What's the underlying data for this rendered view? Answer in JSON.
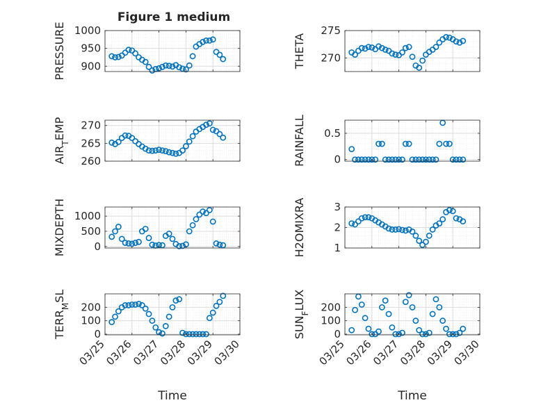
{
  "figure": {
    "title": "Figure 1 medium",
    "colors": {
      "marker": "#0072BD",
      "axes": "#262626",
      "grid": "#dcdcdc",
      "minor_grid": "#ececec",
      "background": "#ffffff"
    }
  },
  "chart_data": [
    {
      "type": "scatter",
      "ylabel": "PRESSURE",
      "xlim": [
        "03/25",
        "03/30"
      ],
      "ylim": [
        885,
        1000
      ],
      "yticks": [
        900,
        950,
        1000
      ],
      "xticks": [
        "03/25",
        "03/26",
        "03/27",
        "03/28",
        "03/29",
        "03/30"
      ],
      "xtick_labels_shown": false,
      "xlabel": "",
      "grid": true,
      "minor_grid": true,
      "x": [
        "2024-03-25T06:00",
        "2024-03-25T09:00",
        "2024-03-25T12:00",
        "2024-03-25T15:00",
        "2024-03-25T18:00",
        "2024-03-25T21:00",
        "2024-03-26T00:00",
        "2024-03-26T03:00",
        "2024-03-26T06:00",
        "2024-03-26T09:00",
        "2024-03-26T12:00",
        "2024-03-26T15:00",
        "2024-03-26T18:00",
        "2024-03-26T21:00",
        "2024-03-27T00:00",
        "2024-03-27T03:00",
        "2024-03-27T06:00",
        "2024-03-27T09:00",
        "2024-03-27T12:00",
        "2024-03-27T15:00",
        "2024-03-27T18:00",
        "2024-03-27T21:00",
        "2024-03-28T00:00",
        "2024-03-28T03:00",
        "2024-03-28T06:00",
        "2024-03-28T09:00",
        "2024-03-28T12:00",
        "2024-03-28T15:00",
        "2024-03-28T18:00",
        "2024-03-28T21:00",
        "2024-03-29T00:00",
        "2024-03-29T03:00",
        "2024-03-29T06:00",
        "2024-03-29T09:00"
      ],
      "y": [
        928,
        925,
        926,
        930,
        938,
        946,
        944,
        936,
        925,
        918,
        912,
        898,
        888,
        892,
        894,
        898,
        902,
        901,
        899,
        903,
        897,
        893,
        891,
        902,
        928,
        955,
        962,
        968,
        972,
        972,
        975,
        940,
        932,
        920
      ]
    },
    {
      "type": "scatter",
      "ylabel": "THETA",
      "xlim": [
        "03/25",
        "03/30"
      ],
      "ylim": [
        267.5,
        275
      ],
      "yticks": [
        270,
        275
      ],
      "xticks": [
        "03/25",
        "03/26",
        "03/27",
        "03/28",
        "03/29",
        "03/30"
      ],
      "xtick_labels_shown": false,
      "xlabel": "",
      "grid": true,
      "minor_grid": true,
      "x": [
        "2024-03-25T06:00",
        "2024-03-25T09:00",
        "2024-03-25T12:00",
        "2024-03-25T15:00",
        "2024-03-25T18:00",
        "2024-03-25T21:00",
        "2024-03-26T00:00",
        "2024-03-26T03:00",
        "2024-03-26T06:00",
        "2024-03-26T09:00",
        "2024-03-26T12:00",
        "2024-03-26T15:00",
        "2024-03-26T18:00",
        "2024-03-26T21:00",
        "2024-03-27T00:00",
        "2024-03-27T03:00",
        "2024-03-27T06:00",
        "2024-03-27T09:00",
        "2024-03-27T12:00",
        "2024-03-27T15:00",
        "2024-03-27T18:00",
        "2024-03-27T21:00",
        "2024-03-28T00:00",
        "2024-03-28T03:00",
        "2024-03-28T06:00",
        "2024-03-28T09:00",
        "2024-03-28T12:00",
        "2024-03-28T15:00",
        "2024-03-28T18:00",
        "2024-03-28T21:00",
        "2024-03-29T00:00",
        "2024-03-29T03:00",
        "2024-03-29T06:00",
        "2024-03-29T09:00"
      ],
      "y": [
        271.0,
        270.6,
        271.3,
        271.8,
        271.7,
        272.0,
        271.9,
        271.6,
        272.1,
        271.8,
        271.5,
        271.3,
        270.8,
        270.6,
        270.5,
        271.0,
        271.8,
        272.0,
        270.2,
        268.6,
        268.2,
        269.5,
        270.6,
        271.1,
        271.5,
        272.0,
        272.8,
        273.4,
        273.8,
        273.7,
        273.4,
        273.0,
        272.8,
        273.1
      ]
    },
    {
      "type": "scatter",
      "ylabel": "AIR_TEMP",
      "xlim": [
        "03/25",
        "03/30"
      ],
      "ylim": [
        260,
        271.5
      ],
      "yticks": [
        260,
        265,
        270
      ],
      "xticks": [
        "03/25",
        "03/26",
        "03/27",
        "03/28",
        "03/29",
        "03/30"
      ],
      "xtick_labels_shown": false,
      "xlabel": "",
      "grid": true,
      "minor_grid": true,
      "x": [
        "2024-03-25T06:00",
        "2024-03-25T09:00",
        "2024-03-25T12:00",
        "2024-03-25T15:00",
        "2024-03-25T18:00",
        "2024-03-25T21:00",
        "2024-03-26T00:00",
        "2024-03-26T03:00",
        "2024-03-26T06:00",
        "2024-03-26T09:00",
        "2024-03-26T12:00",
        "2024-03-26T15:00",
        "2024-03-26T18:00",
        "2024-03-26T21:00",
        "2024-03-27T00:00",
        "2024-03-27T03:00",
        "2024-03-27T06:00",
        "2024-03-27T09:00",
        "2024-03-27T12:00",
        "2024-03-27T15:00",
        "2024-03-27T18:00",
        "2024-03-27T21:00",
        "2024-03-28T00:00",
        "2024-03-28T03:00",
        "2024-03-28T06:00",
        "2024-03-28T09:00",
        "2024-03-28T12:00",
        "2024-03-28T15:00",
        "2024-03-28T18:00",
        "2024-03-28T21:00",
        "2024-03-29T00:00",
        "2024-03-29T03:00",
        "2024-03-29T06:00",
        "2024-03-29T09:00"
      ],
      "y": [
        265.2,
        264.8,
        265.4,
        266.5,
        267.2,
        267.1,
        266.5,
        265.6,
        264.8,
        264.1,
        263.5,
        263.0,
        262.9,
        263.0,
        263.2,
        263.0,
        262.8,
        262.5,
        262.3,
        262.1,
        262.3,
        263.0,
        264.2,
        265.5,
        267.0,
        268.3,
        269.0,
        269.6,
        270.2,
        270.6,
        268.8,
        268.4,
        267.6,
        266.6
      ]
    },
    {
      "type": "scatter",
      "ylabel": "RAINFALL",
      "xlim": [
        "03/25",
        "03/30"
      ],
      "ylim": [
        -0.03,
        0.75
      ],
      "yticks": [
        0,
        0.5
      ],
      "xticks": [
        "03/25",
        "03/26",
        "03/27",
        "03/28",
        "03/29",
        "03/30"
      ],
      "xtick_labels_shown": false,
      "xlabel": "",
      "grid": true,
      "minor_grid": true,
      "x": [
        "2024-03-25T06:00",
        "2024-03-25T09:00",
        "2024-03-25T12:00",
        "2024-03-25T15:00",
        "2024-03-25T18:00",
        "2024-03-25T21:00",
        "2024-03-26T00:00",
        "2024-03-26T03:00",
        "2024-03-26T06:00",
        "2024-03-26T09:00",
        "2024-03-26T12:00",
        "2024-03-26T15:00",
        "2024-03-26T18:00",
        "2024-03-26T21:00",
        "2024-03-27T00:00",
        "2024-03-27T03:00",
        "2024-03-27T06:00",
        "2024-03-27T09:00",
        "2024-03-27T12:00",
        "2024-03-27T15:00",
        "2024-03-27T18:00",
        "2024-03-27T21:00",
        "2024-03-28T00:00",
        "2024-03-28T03:00",
        "2024-03-28T06:00",
        "2024-03-28T09:00",
        "2024-03-28T12:00",
        "2024-03-28T15:00",
        "2024-03-28T18:00",
        "2024-03-28T21:00",
        "2024-03-29T00:00",
        "2024-03-29T03:00",
        "2024-03-29T06:00",
        "2024-03-29T09:00"
      ],
      "y": [
        0.2,
        0,
        0,
        0,
        0,
        0,
        0,
        0,
        0.3,
        0.3,
        0,
        0,
        0,
        0,
        0,
        0,
        0.3,
        0.3,
        0,
        0,
        0,
        0,
        0,
        0,
        0,
        0,
        0.3,
        0.7,
        0.3,
        0.3,
        0,
        0,
        0,
        0
      ]
    },
    {
      "type": "scatter",
      "ylabel": "MIXDEPTH",
      "xlim": [
        "03/25",
        "03/30"
      ],
      "ylim": [
        -50,
        1300
      ],
      "yticks": [
        0,
        500,
        1000
      ],
      "xticks": [
        "03/25",
        "03/26",
        "03/27",
        "03/28",
        "03/29",
        "03/30"
      ],
      "xtick_labels_shown": false,
      "xlabel": "",
      "grid": true,
      "minor_grid": true,
      "x": [
        "2024-03-25T06:00",
        "2024-03-25T09:00",
        "2024-03-25T12:00",
        "2024-03-25T15:00",
        "2024-03-25T18:00",
        "2024-03-25T21:00",
        "2024-03-26T00:00",
        "2024-03-26T03:00",
        "2024-03-26T06:00",
        "2024-03-26T09:00",
        "2024-03-26T12:00",
        "2024-03-26T15:00",
        "2024-03-26T18:00",
        "2024-03-26T21:00",
        "2024-03-27T00:00",
        "2024-03-27T03:00",
        "2024-03-27T06:00",
        "2024-03-27T09:00",
        "2024-03-27T12:00",
        "2024-03-27T15:00",
        "2024-03-27T18:00",
        "2024-03-27T21:00",
        "2024-03-28T00:00",
        "2024-03-28T03:00",
        "2024-03-28T06:00",
        "2024-03-28T09:00",
        "2024-03-28T12:00",
        "2024-03-28T15:00",
        "2024-03-28T18:00",
        "2024-03-28T21:00",
        "2024-03-29T00:00",
        "2024-03-29T03:00",
        "2024-03-29T06:00",
        "2024-03-29T09:00"
      ],
      "y": [
        320,
        500,
        650,
        250,
        120,
        100,
        90,
        120,
        150,
        500,
        580,
        280,
        60,
        30,
        50,
        40,
        350,
        420,
        250,
        80,
        10,
        20,
        70,
        500,
        700,
        900,
        1050,
        1150,
        1100,
        1200,
        820,
        100,
        60,
        40
      ]
    },
    {
      "type": "scatter",
      "ylabel": "H2OMIXRA",
      "xlim": [
        "03/25",
        "03/30"
      ],
      "ylim": [
        1,
        3
      ],
      "yticks": [
        1,
        2,
        3
      ],
      "xticks": [
        "03/25",
        "03/26",
        "03/27",
        "03/28",
        "03/29",
        "03/30"
      ],
      "xtick_labels_shown": false,
      "xlabel": "",
      "grid": true,
      "minor_grid": true,
      "x": [
        "2024-03-25T06:00",
        "2024-03-25T09:00",
        "2024-03-25T12:00",
        "2024-03-25T15:00",
        "2024-03-25T18:00",
        "2024-03-25T21:00",
        "2024-03-26T00:00",
        "2024-03-26T03:00",
        "2024-03-26T06:00",
        "2024-03-26T09:00",
        "2024-03-26T12:00",
        "2024-03-26T15:00",
        "2024-03-26T18:00",
        "2024-03-26T21:00",
        "2024-03-27T00:00",
        "2024-03-27T03:00",
        "2024-03-27T06:00",
        "2024-03-27T09:00",
        "2024-03-27T12:00",
        "2024-03-27T15:00",
        "2024-03-27T18:00",
        "2024-03-27T21:00",
        "2024-03-28T00:00",
        "2024-03-28T03:00",
        "2024-03-28T06:00",
        "2024-03-28T09:00",
        "2024-03-28T12:00",
        "2024-03-28T15:00",
        "2024-03-28T18:00",
        "2024-03-28T21:00",
        "2024-03-29T00:00",
        "2024-03-29T03:00",
        "2024-03-29T06:00",
        "2024-03-29T09:00"
      ],
      "y": [
        2.2,
        2.15,
        2.3,
        2.45,
        2.5,
        2.5,
        2.45,
        2.35,
        2.25,
        2.15,
        2.05,
        1.95,
        1.9,
        1.9,
        1.92,
        1.88,
        1.85,
        1.9,
        1.8,
        1.6,
        1.35,
        1.15,
        1.3,
        1.6,
        1.9,
        2.1,
        2.2,
        2.4,
        2.75,
        2.85,
        2.8,
        2.45,
        2.4,
        2.3
      ]
    },
    {
      "type": "scatter",
      "ylabel": "TERR_MSL",
      "xlim": [
        "03/25",
        "03/30"
      ],
      "ylim": [
        -5,
        300
      ],
      "yticks": [
        0,
        100,
        200
      ],
      "xticks": [
        "03/25",
        "03/26",
        "03/27",
        "03/28",
        "03/29",
        "03/30"
      ],
      "xtick_labels_shown": true,
      "xlabel": "Time",
      "grid": true,
      "minor_grid": true,
      "x": [
        "2024-03-25T06:00",
        "2024-03-25T09:00",
        "2024-03-25T12:00",
        "2024-03-25T15:00",
        "2024-03-25T18:00",
        "2024-03-25T21:00",
        "2024-03-26T00:00",
        "2024-03-26T03:00",
        "2024-03-26T06:00",
        "2024-03-26T09:00",
        "2024-03-26T12:00",
        "2024-03-26T15:00",
        "2024-03-26T18:00",
        "2024-03-26T21:00",
        "2024-03-27T00:00",
        "2024-03-27T03:00",
        "2024-03-27T06:00",
        "2024-03-27T09:00",
        "2024-03-27T12:00",
        "2024-03-27T15:00",
        "2024-03-27T18:00",
        "2024-03-27T21:00",
        "2024-03-28T00:00",
        "2024-03-28T03:00",
        "2024-03-28T06:00",
        "2024-03-28T09:00",
        "2024-03-28T12:00",
        "2024-03-28T15:00",
        "2024-03-28T18:00",
        "2024-03-28T21:00",
        "2024-03-29T00:00",
        "2024-03-29T03:00",
        "2024-03-29T06:00",
        "2024-03-29T09:00"
      ],
      "y": [
        90,
        130,
        170,
        200,
        215,
        215,
        220,
        220,
        225,
        215,
        190,
        150,
        100,
        50,
        15,
        5,
        60,
        130,
        200,
        250,
        260,
        10,
        0,
        0,
        0,
        0,
        0,
        0,
        0,
        120,
        160,
        210,
        240,
        285
      ]
    },
    {
      "type": "scatter",
      "ylabel": "SUN_FLUX",
      "xlim": [
        "03/25",
        "03/30"
      ],
      "ylim": [
        -5,
        300
      ],
      "yticks": [
        0,
        100,
        200
      ],
      "xticks": [
        "03/25",
        "03/26",
        "03/27",
        "03/28",
        "03/29",
        "03/30"
      ],
      "xtick_labels_shown": true,
      "xlabel": "Time",
      "grid": true,
      "minor_grid": true,
      "x": [
        "2024-03-25T06:00",
        "2024-03-25T09:00",
        "2024-03-25T12:00",
        "2024-03-25T15:00",
        "2024-03-25T18:00",
        "2024-03-25T21:00",
        "2024-03-26T00:00",
        "2024-03-26T03:00",
        "2024-03-26T06:00",
        "2024-03-26T09:00",
        "2024-03-26T12:00",
        "2024-03-26T15:00",
        "2024-03-26T18:00",
        "2024-03-26T21:00",
        "2024-03-27T00:00",
        "2024-03-27T03:00",
        "2024-03-27T06:00",
        "2024-03-27T09:00",
        "2024-03-27T12:00",
        "2024-03-27T15:00",
        "2024-03-27T18:00",
        "2024-03-27T21:00",
        "2024-03-28T00:00",
        "2024-03-28T03:00",
        "2024-03-28T06:00",
        "2024-03-28T09:00",
        "2024-03-28T12:00",
        "2024-03-28T15:00",
        "2024-03-28T18:00",
        "2024-03-28T21:00",
        "2024-03-29T00:00",
        "2024-03-29T03:00",
        "2024-03-29T06:00",
        "2024-03-29T09:00"
      ],
      "y": [
        30,
        180,
        280,
        220,
        120,
        40,
        0,
        0,
        20,
        200,
        250,
        150,
        50,
        0,
        0,
        10,
        240,
        290,
        200,
        100,
        30,
        0,
        0,
        10,
        150,
        260,
        200,
        100,
        40,
        0,
        0,
        0,
        10,
        40
      ]
    }
  ]
}
